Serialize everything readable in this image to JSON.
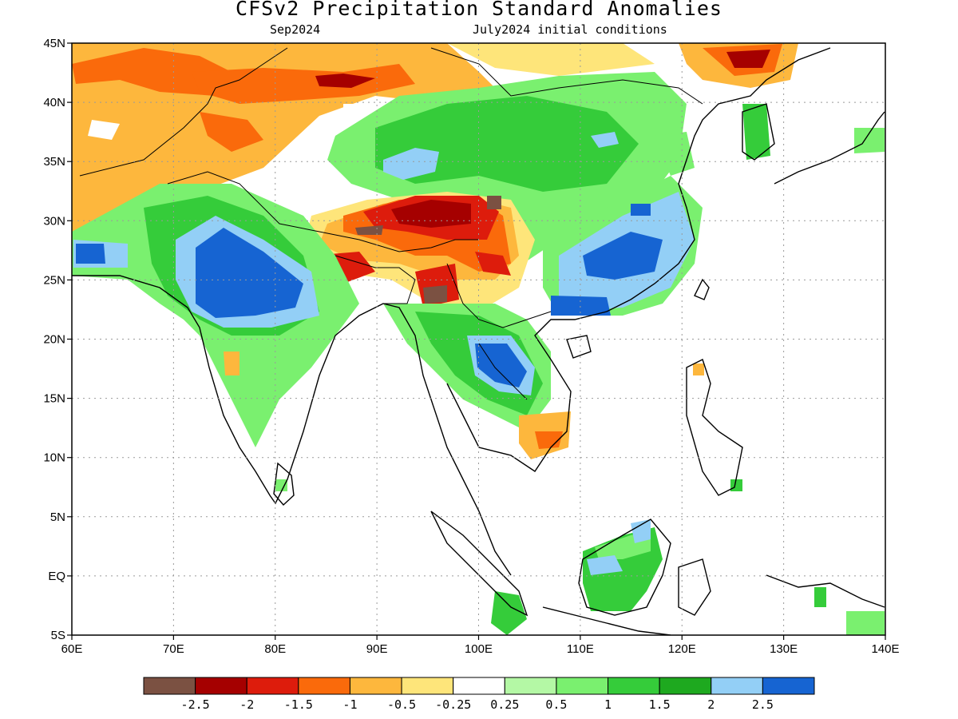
{
  "header": {
    "title": "CFSv2 Precipitation Standard Anomalies",
    "target_month": "Sep2024",
    "init": "July2024 initial conditions"
  },
  "map": {
    "lon_range": [
      60,
      140
    ],
    "lat_range": [
      -5,
      45
    ],
    "lon_ticks": [
      "60E",
      "70E",
      "80E",
      "90E",
      "100E",
      "110E",
      "120E",
      "130E",
      "140E"
    ],
    "lat_ticks": [
      "45N",
      "40N",
      "35N",
      "30N",
      "25N",
      "20N",
      "15N",
      "10N",
      "5N",
      "EQ",
      "5S"
    ],
    "grid": true
  },
  "colorbar": {
    "colors": [
      "#7b5142",
      "#a50000",
      "#dd1c0c",
      "#fa6a0b",
      "#fdb73d",
      "#fee57a",
      "#ffffff",
      "#b4f8a5",
      "#7af06f",
      "#35cc3a",
      "#1ea91f",
      "#93cff6",
      "#1664d2"
    ],
    "labels": [
      "-2.5",
      "-2",
      "-1.5",
      "-1",
      "-0.5",
      "-0.25",
      "0.25",
      "0.5",
      "1",
      "1.5",
      "2",
      "2.5"
    ]
  }
}
